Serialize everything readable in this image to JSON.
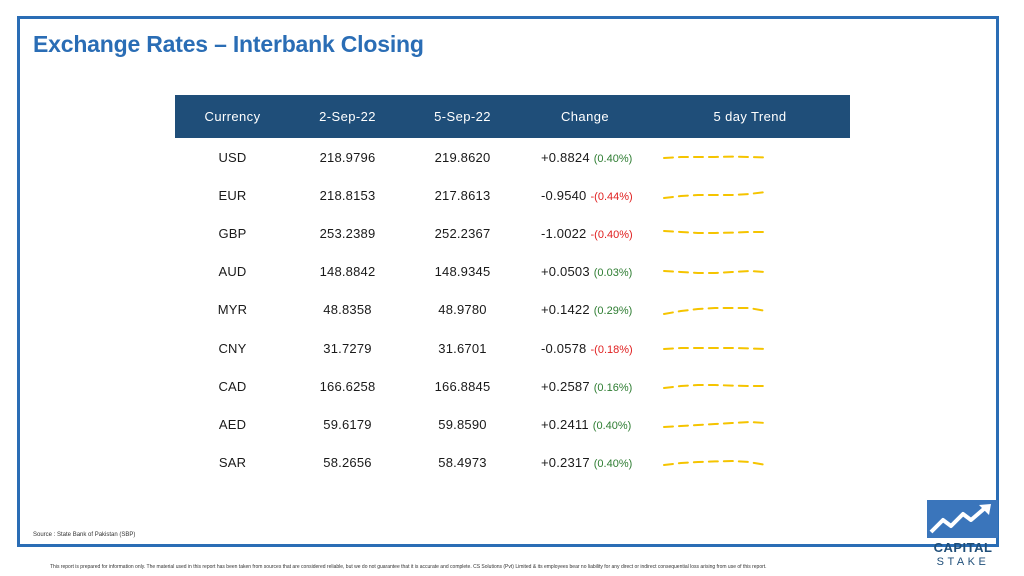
{
  "title": "Exchange Rates – Interbank Closing",
  "table": {
    "headers": [
      "Currency",
      "2-Sep-22",
      "5-Sep-22",
      "Change",
      "5 day Trend"
    ],
    "rows": [
      {
        "currency": "USD",
        "d1": "218.9796",
        "d2": "219.8620",
        "change": "+0.8824",
        "pct": "(0.40%)",
        "dir": "pos",
        "trend": [
          0.45,
          0.5,
          0.5,
          0.5,
          0.52,
          0.5,
          0.48
        ]
      },
      {
        "currency": "EUR",
        "d1": "218.8153",
        "d2": "217.8613",
        "change": "-0.9540",
        "pct": "-(0.44%)",
        "dir": "neg",
        "trend": [
          0.35,
          0.45,
          0.5,
          0.5,
          0.5,
          0.55,
          0.65
        ]
      },
      {
        "currency": "GBP",
        "d1": "253.2389",
        "d2": "252.2367",
        "change": "-1.0022",
        "pct": "-(0.40%)",
        "dir": "neg",
        "trend": [
          0.6,
          0.55,
          0.5,
          0.5,
          0.52,
          0.55,
          0.55
        ]
      },
      {
        "currency": "AUD",
        "d1": "148.8842",
        "d2": "148.9345",
        "change": "+0.0503",
        "pct": "(0.03%)",
        "dir": "pos",
        "trend": [
          0.55,
          0.5,
          0.45,
          0.45,
          0.5,
          0.55,
          0.5
        ]
      },
      {
        "currency": "MYR",
        "d1": "48.8358",
        "d2": "48.9780",
        "change": "+0.1422",
        "pct": "(0.29%)",
        "dir": "pos",
        "trend": [
          0.3,
          0.45,
          0.55,
          0.6,
          0.6,
          0.6,
          0.45
        ]
      },
      {
        "currency": "CNY",
        "d1": "31.7279",
        "d2": "31.6701",
        "change": "-0.0578",
        "pct": "-(0.18%)",
        "dir": "neg",
        "trend": [
          0.45,
          0.5,
          0.5,
          0.5,
          0.5,
          0.48,
          0.45
        ]
      },
      {
        "currency": "CAD",
        "d1": "166.6258",
        "d2": "166.8845",
        "change": "+0.2587",
        "pct": "(0.16%)",
        "dir": "pos",
        "trend": [
          0.4,
          0.5,
          0.55,
          0.55,
          0.52,
          0.5,
          0.5
        ]
      },
      {
        "currency": "AED",
        "d1": "59.6179",
        "d2": "59.8590",
        "change": "+0.2411",
        "pct": "(0.40%)",
        "dir": "pos",
        "trend": [
          0.35,
          0.4,
          0.45,
          0.5,
          0.55,
          0.6,
          0.55
        ]
      },
      {
        "currency": "SAR",
        "d1": "58.2656",
        "d2": "58.4973",
        "change": "+0.2317",
        "pct": "(0.40%)",
        "dir": "pos",
        "trend": [
          0.4,
          0.5,
          0.55,
          0.58,
          0.6,
          0.55,
          0.4
        ]
      }
    ]
  },
  "source": "Source : State Bank of Pakistan (SBP)",
  "disclaimer": "This report is prepared for information only. The material used in this report has been taken from sources that are considered reliable, but we do not guarantee that it is accurate and complete. CS Solutions (Pvt) Limited & its employees bear no liability for any direct or indirect consequential loss arising from use of this report.",
  "logo": {
    "line1": "CAPITAL",
    "line2": "STAKE"
  },
  "colors": {
    "accent": "#2a6db5",
    "header_bg": "#1f4e79",
    "positive": "#2e7d32",
    "negative": "#e02020",
    "trend": "#f5c400"
  }
}
